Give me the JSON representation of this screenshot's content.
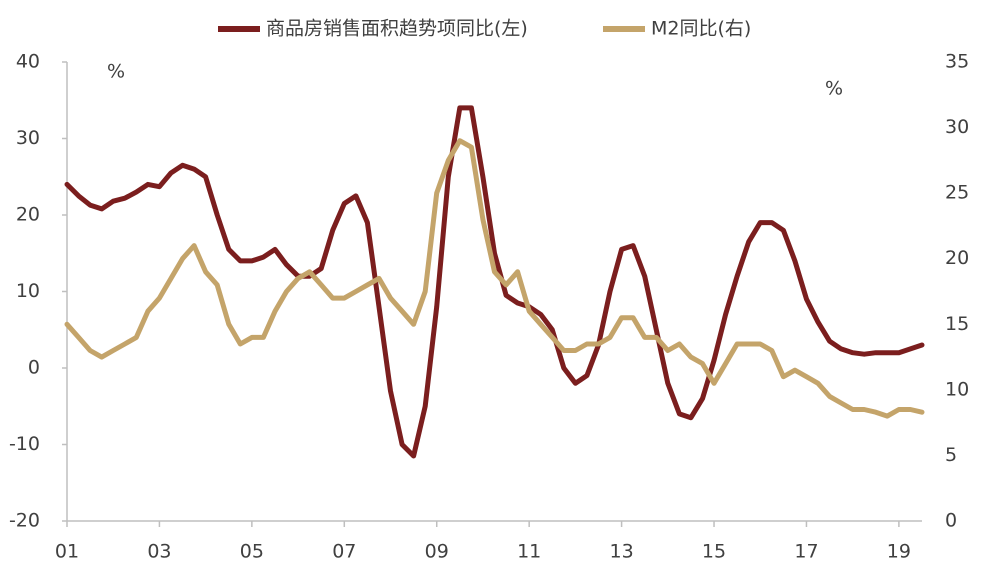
{
  "chart_data": {
    "type": "line",
    "x": [
      2001.0,
      2001.25,
      2001.5,
      2001.75,
      2002.0,
      2002.25,
      2002.5,
      2002.75,
      2003.0,
      2003.25,
      2003.5,
      2003.75,
      2004.0,
      2004.25,
      2004.5,
      2004.75,
      2005.0,
      2005.25,
      2005.5,
      2005.75,
      2006.0,
      2006.25,
      2006.5,
      2006.75,
      2007.0,
      2007.25,
      2007.5,
      2007.75,
      2008.0,
      2008.25,
      2008.5,
      2008.75,
      2009.0,
      2009.25,
      2009.5,
      2009.75,
      2010.0,
      2010.25,
      2010.5,
      2010.75,
      2011.0,
      2011.25,
      2011.5,
      2011.75,
      2012.0,
      2012.25,
      2012.5,
      2012.75,
      2013.0,
      2013.25,
      2013.5,
      2013.75,
      2014.0,
      2014.25,
      2014.5,
      2014.75,
      2015.0,
      2015.25,
      2015.5,
      2015.75,
      2016.0,
      2016.25,
      2016.5,
      2016.75,
      2017.0,
      2017.25,
      2017.5,
      2017.75,
      2018.0,
      2018.25,
      2018.5,
      2018.75,
      2019.0,
      2019.25,
      2019.5
    ],
    "series": [
      {
        "name": "商品房销售面积趋势项同比(左)",
        "color": "#7b1e1e",
        "axis": "y",
        "values": [
          24,
          22.5,
          21.3,
          20.8,
          21.8,
          22.2,
          23,
          24,
          23.7,
          25.5,
          26.5,
          26,
          25,
          20,
          15.5,
          14,
          14,
          14.5,
          15.5,
          13.5,
          12,
          12,
          13,
          18,
          21.5,
          22.5,
          19,
          8,
          -3,
          -10,
          -11.5,
          -5,
          8,
          25,
          34,
          34,
          25,
          15,
          9.5,
          8.5,
          8,
          7,
          5,
          0,
          -2,
          -1,
          3,
          10,
          15.5,
          16,
          12,
          5,
          -2,
          -6,
          -6.5,
          -4,
          1,
          7,
          12,
          16.5,
          19,
          19,
          18,
          14,
          9,
          6,
          3.5,
          2.5,
          2,
          1.8,
          2,
          2,
          2,
          2.5,
          3
        ]
      },
      {
        "name": "M2同比(右)",
        "color": "#c4a46a",
        "axis": "y2",
        "values": [
          15,
          14,
          13,
          12.5,
          13,
          13.5,
          14,
          16,
          17,
          18.5,
          20,
          21,
          19,
          18,
          15,
          13.5,
          14,
          14,
          16,
          17.5,
          18.5,
          19,
          18,
          17,
          17,
          17.5,
          18,
          18.5,
          17,
          16,
          15,
          17.5,
          25,
          27.5,
          29,
          28.5,
          23,
          19,
          18,
          19,
          16,
          15,
          14,
          13,
          13,
          13.5,
          13.5,
          14,
          15.5,
          15.5,
          14,
          14,
          13,
          13.5,
          12.5,
          12,
          10.5,
          12,
          13.5,
          13.5,
          13.5,
          13,
          11,
          11.5,
          11,
          10.5,
          9.5,
          9,
          8.5,
          8.5,
          8.3,
          8,
          8.5,
          8.5,
          8.3
        ]
      }
    ],
    "xlim": [
      2001,
      2019.5
    ],
    "xticks": [
      {
        "value": 2001,
        "label": "01"
      },
      {
        "value": 2003,
        "label": "03"
      },
      {
        "value": 2005,
        "label": "05"
      },
      {
        "value": 2007,
        "label": "07"
      },
      {
        "value": 2009,
        "label": "09"
      },
      {
        "value": 2011,
        "label": "11"
      },
      {
        "value": 2013,
        "label": "13"
      },
      {
        "value": 2015,
        "label": "15"
      },
      {
        "value": 2017,
        "label": "17"
      },
      {
        "value": 2019,
        "label": "19"
      }
    ],
    "ylim": [
      -20,
      40
    ],
    "yticks": [
      -20,
      -10,
      0,
      10,
      20,
      30,
      40
    ],
    "y2lim": [
      0,
      35
    ],
    "y2ticks": [
      0,
      5,
      10,
      15,
      20,
      25,
      30,
      35
    ],
    "y_unit": "%",
    "y2_unit": "%"
  }
}
